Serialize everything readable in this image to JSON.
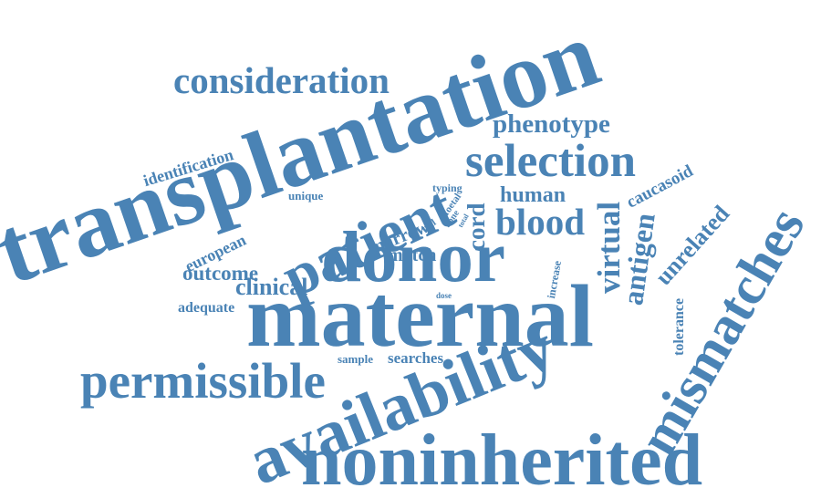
{
  "color": "#4a83b5",
  "words": {
    "transplantation": "transplantation",
    "consideration": "consideration",
    "phenotype": "phenotype",
    "identification": "identification",
    "selection": "selection",
    "patient": "patient",
    "cord": "cord",
    "human": "human",
    "caucasoid": "caucasoid",
    "typing": "typing",
    "unique": "unique",
    "foetal": "foetal",
    "cell": "cell",
    "bone": "bone",
    "total": "total",
    "blood": "blood",
    "marrow": "marrow",
    "european": "european",
    "match": "match",
    "donor": "donor",
    "virtual": "virtual",
    "antigen": "antigen",
    "unrelated": "unrelated",
    "increase": "increase",
    "outcome": "outcome",
    "clinical": "clinical",
    "adequate": "adequate",
    "dose": "dose",
    "maternal": "maternal",
    "tolerance": "tolerance",
    "mismatches": "mismatches",
    "sample": "sample",
    "searches": "searches",
    "permissible": "permissible",
    "availability": "availability",
    "noninherited": "noninherited"
  }
}
